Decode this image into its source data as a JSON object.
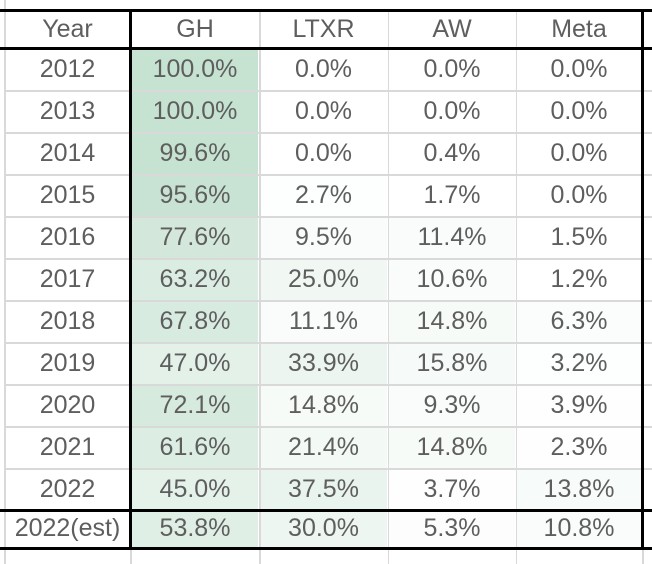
{
  "table": {
    "columns": [
      "Year",
      "GH",
      "LTXR",
      "AW",
      "Meta"
    ],
    "rows": [
      {
        "year": "2012",
        "values": [
          "100.0%",
          "0.0%",
          "0.0%",
          "0.0%"
        ]
      },
      {
        "year": "2013",
        "values": [
          "100.0%",
          "0.0%",
          "0.0%",
          "0.0%"
        ]
      },
      {
        "year": "2014",
        "values": [
          "99.6%",
          "0.0%",
          "0.4%",
          "0.0%"
        ]
      },
      {
        "year": "2015",
        "values": [
          "95.6%",
          "2.7%",
          "1.7%",
          "0.0%"
        ]
      },
      {
        "year": "2016",
        "values": [
          "77.6%",
          "9.5%",
          "11.4%",
          "1.5%"
        ]
      },
      {
        "year": "2017",
        "values": [
          "63.2%",
          "25.0%",
          "10.6%",
          "1.2%"
        ]
      },
      {
        "year": "2018",
        "values": [
          "67.8%",
          "11.1%",
          "14.8%",
          "6.3%"
        ]
      },
      {
        "year": "2019",
        "values": [
          "47.0%",
          "33.9%",
          "15.8%",
          "3.2%"
        ]
      },
      {
        "year": "2020",
        "values": [
          "72.1%",
          "14.8%",
          "9.3%",
          "3.9%"
        ]
      },
      {
        "year": "2021",
        "values": [
          "61.6%",
          "21.4%",
          "14.8%",
          "2.3%"
        ]
      },
      {
        "year": "2022",
        "values": [
          "45.0%",
          "37.5%",
          "3.7%",
          "13.8%"
        ]
      },
      {
        "year": "2022(est)",
        "values": [
          "53.8%",
          "30.0%",
          "5.3%",
          "10.8%"
        ]
      }
    ],
    "colors": {
      "max_fill": "#c6e2d1",
      "gridline": "#d9d9d9",
      "border": "#000000",
      "text": "#5e5e5e",
      "background": "#ffffff"
    },
    "conditional_format": {
      "type": "color-scale",
      "min_value": 0,
      "max_value": 100,
      "min_color": "#ffffff",
      "max_color": "#c6e2d1"
    }
  }
}
